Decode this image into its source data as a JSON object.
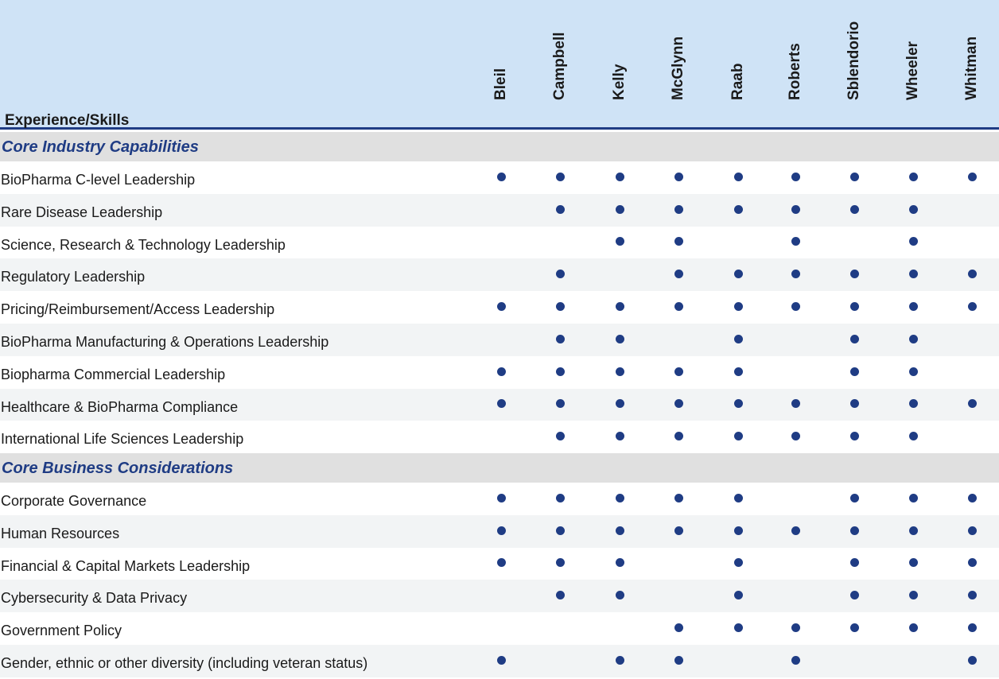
{
  "header": {
    "title": "Experience/Skills"
  },
  "columns": [
    "Bleil",
    "Campbell",
    "Kelly",
    "McGlynn",
    "Raab",
    "Roberts",
    "Sblendorio",
    "Wheeler",
    "Whitman"
  ],
  "sections": [
    {
      "title": "Core Industry Capabilities",
      "rows": [
        {
          "label": "BioPharma C-level Leadership",
          "marks": [
            1,
            1,
            1,
            1,
            1,
            1,
            1,
            1,
            1
          ]
        },
        {
          "label": "Rare Disease Leadership",
          "marks": [
            0,
            1,
            1,
            1,
            1,
            1,
            1,
            1,
            0
          ]
        },
        {
          "label": "Science, Research & Technology Leadership",
          "marks": [
            0,
            0,
            1,
            1,
            0,
            1,
            0,
            1,
            0
          ]
        },
        {
          "label": "Regulatory Leadership",
          "marks": [
            0,
            1,
            0,
            1,
            1,
            1,
            1,
            1,
            1
          ]
        },
        {
          "label": "Pricing/Reimbursement/Access Leadership",
          "marks": [
            1,
            1,
            1,
            1,
            1,
            1,
            1,
            1,
            1
          ]
        },
        {
          "label": "BioPharma Manufacturing & Operations Leadership",
          "marks": [
            0,
            1,
            1,
            0,
            1,
            0,
            1,
            1,
            0
          ]
        },
        {
          "label": "Biopharma Commercial Leadership",
          "marks": [
            1,
            1,
            1,
            1,
            1,
            0,
            1,
            1,
            0
          ]
        },
        {
          "label": "Healthcare & BioPharma Compliance",
          "marks": [
            1,
            1,
            1,
            1,
            1,
            1,
            1,
            1,
            1
          ]
        },
        {
          "label": "International Life Sciences Leadership",
          "marks": [
            0,
            1,
            1,
            1,
            1,
            1,
            1,
            1,
            0
          ]
        }
      ]
    },
    {
      "title": "Core Business Considerations",
      "rows": [
        {
          "label": "Corporate Governance",
          "marks": [
            1,
            1,
            1,
            1,
            1,
            0,
            1,
            1,
            1
          ]
        },
        {
          "label": "Human Resources",
          "marks": [
            1,
            1,
            1,
            1,
            1,
            1,
            1,
            1,
            1
          ]
        },
        {
          "label": "Financial & Capital Markets Leadership",
          "marks": [
            1,
            1,
            1,
            0,
            1,
            0,
            1,
            1,
            1
          ]
        },
        {
          "label": "Cybersecurity & Data Privacy",
          "marks": [
            0,
            1,
            1,
            0,
            1,
            0,
            1,
            1,
            1
          ]
        },
        {
          "label": "Government Policy",
          "marks": [
            0,
            0,
            0,
            1,
            1,
            1,
            1,
            1,
            1
          ]
        },
        {
          "label": "Gender, ethnic or other diversity (including veteran status)",
          "marks": [
            1,
            0,
            1,
            1,
            0,
            1,
            0,
            0,
            1
          ]
        }
      ]
    }
  ],
  "colors": {
    "header_bg": "#cfe3f6",
    "accent": "#1f3c84",
    "section_bg": "#e0e0e0",
    "alt_row_bg": "#f2f4f5"
  }
}
